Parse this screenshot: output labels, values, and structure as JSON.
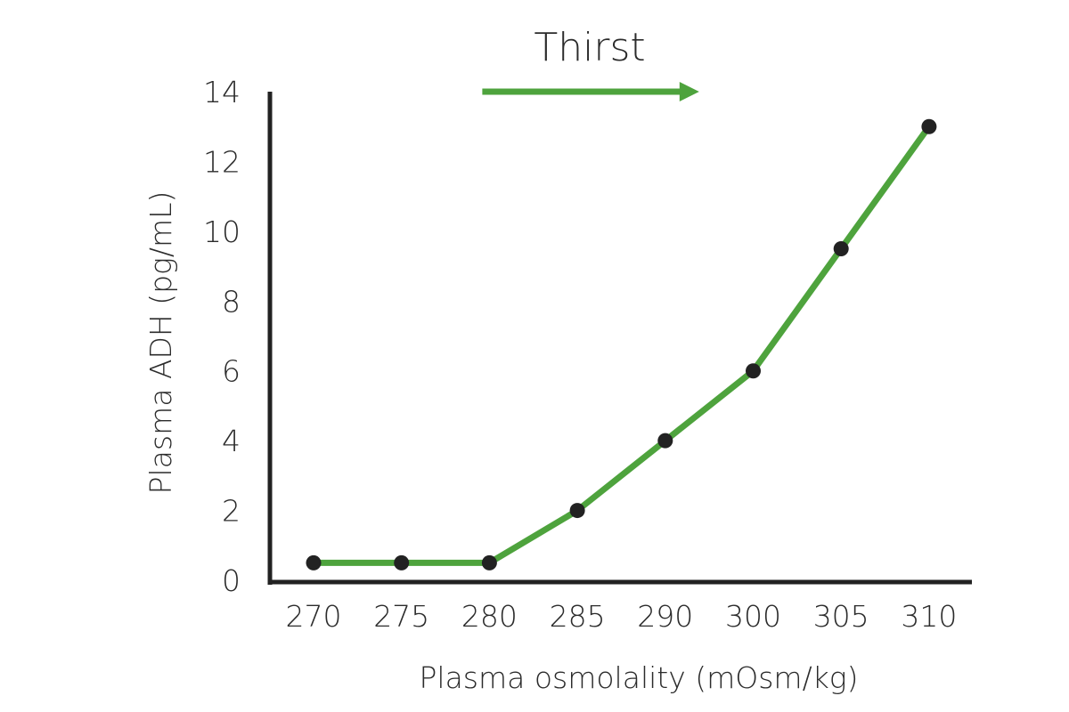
{
  "chart_data": {
    "type": "line",
    "title": "",
    "xlabel": "Plasma osmolality (mOsm/kg)",
    "ylabel": "Plasma ADH (pg/mL)",
    "categories": [
      "270",
      "275",
      "280",
      "285",
      "290",
      "300",
      "305",
      "310"
    ],
    "values": [
      0.5,
      0.5,
      0.5,
      2,
      4,
      6,
      9.5,
      13
    ],
    "ylim": [
      0,
      14
    ],
    "yticks": [
      "0",
      "2",
      "4",
      "6",
      "8",
      "10",
      "12",
      "14"
    ],
    "grid": false,
    "line_color": "#4ea33d",
    "marker_color": "#222222",
    "annotation": {
      "text": "Thirst",
      "arrow_color": "#4ea33d",
      "arrow_direction": "right",
      "arrow_from_category": "280",
      "arrow_to_category": "290"
    }
  }
}
